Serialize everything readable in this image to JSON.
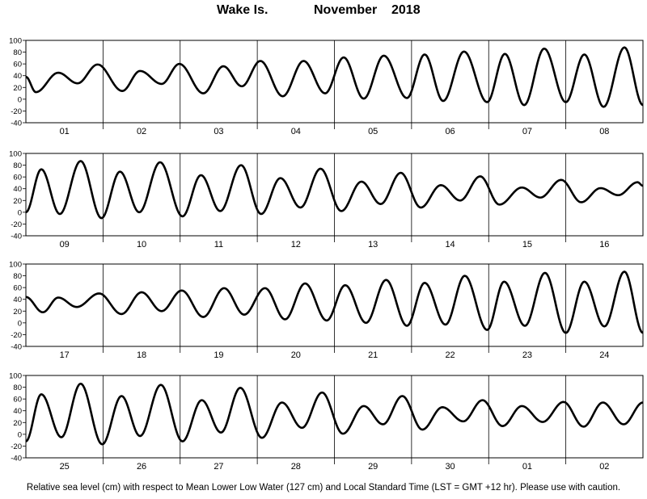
{
  "title": {
    "station": "Wake Is.",
    "month": "November",
    "year": "2018"
  },
  "footnote": "Relative sea level (cm) with respect to Mean Lower Low Water (127 cm) and Local Standard Time (LST = GMT +12 hr). Please use with caution.",
  "chart_data": {
    "type": "line",
    "ylim": [
      -40,
      100
    ],
    "yticks": [
      -40,
      -20,
      0,
      20,
      40,
      60,
      80,
      100
    ],
    "grid": "vertical lines at day boundaries",
    "series_color": "#000000",
    "panels": [
      {
        "days": [
          "01",
          "02",
          "03",
          "04",
          "05",
          "06",
          "07",
          "08"
        ],
        "extrema": [
          {
            "t": 0.0,
            "v": 38
          },
          {
            "t": 0.13,
            "v": 12
          },
          {
            "t": 0.42,
            "v": 45
          },
          {
            "t": 0.67,
            "v": 27
          },
          {
            "t": 0.93,
            "v": 59
          },
          {
            "t": 1.25,
            "v": 14
          },
          {
            "t": 1.48,
            "v": 48
          },
          {
            "t": 1.76,
            "v": 26
          },
          {
            "t": 1.99,
            "v": 60
          },
          {
            "t": 2.3,
            "v": 10
          },
          {
            "t": 2.56,
            "v": 56
          },
          {
            "t": 2.8,
            "v": 22
          },
          {
            "t": 3.04,
            "v": 65
          },
          {
            "t": 3.33,
            "v": 5
          },
          {
            "t": 3.6,
            "v": 65
          },
          {
            "t": 3.88,
            "v": 10
          },
          {
            "t": 4.12,
            "v": 71
          },
          {
            "t": 4.38,
            "v": 1
          },
          {
            "t": 4.64,
            "v": 74
          },
          {
            "t": 4.94,
            "v": 2
          },
          {
            "t": 5.17,
            "v": 76
          },
          {
            "t": 5.41,
            "v": -3
          },
          {
            "t": 5.68,
            "v": 81
          },
          {
            "t": 5.98,
            "v": -5
          },
          {
            "t": 6.21,
            "v": 77
          },
          {
            "t": 6.46,
            "v": -10
          },
          {
            "t": 6.72,
            "v": 86
          },
          {
            "t": 7.0,
            "v": -5
          },
          {
            "t": 7.24,
            "v": 76
          },
          {
            "t": 7.49,
            "v": -13
          },
          {
            "t": 7.76,
            "v": 88
          },
          {
            "t": 8.0,
            "v": -10
          }
        ]
      },
      {
        "days": [
          "09",
          "10",
          "11",
          "12",
          "13",
          "14",
          "15",
          "16"
        ],
        "extrema": [
          {
            "t": 0.0,
            "v": 0
          },
          {
            "t": 0.2,
            "v": 73
          },
          {
            "t": 0.44,
            "v": -3
          },
          {
            "t": 0.71,
            "v": 87
          },
          {
            "t": 0.98,
            "v": -10
          },
          {
            "t": 1.22,
            "v": 69
          },
          {
            "t": 1.47,
            "v": 0
          },
          {
            "t": 1.74,
            "v": 85
          },
          {
            "t": 2.03,
            "v": -7
          },
          {
            "t": 2.27,
            "v": 63
          },
          {
            "t": 2.52,
            "v": 2
          },
          {
            "t": 2.79,
            "v": 80
          },
          {
            "t": 3.05,
            "v": -3
          },
          {
            "t": 3.3,
            "v": 58
          },
          {
            "t": 3.56,
            "v": 8
          },
          {
            "t": 3.82,
            "v": 74
          },
          {
            "t": 4.09,
            "v": 2
          },
          {
            "t": 4.35,
            "v": 52
          },
          {
            "t": 4.6,
            "v": 14
          },
          {
            "t": 4.86,
            "v": 67
          },
          {
            "t": 5.12,
            "v": 8
          },
          {
            "t": 5.38,
            "v": 46
          },
          {
            "t": 5.63,
            "v": 20
          },
          {
            "t": 5.89,
            "v": 61
          },
          {
            "t": 6.14,
            "v": 13
          },
          {
            "t": 6.43,
            "v": 42
          },
          {
            "t": 6.67,
            "v": 25
          },
          {
            "t": 6.94,
            "v": 55
          },
          {
            "t": 7.2,
            "v": 17
          },
          {
            "t": 7.45,
            "v": 41
          },
          {
            "t": 7.68,
            "v": 29
          },
          {
            "t": 7.93,
            "v": 51
          },
          {
            "t": 8.0,
            "v": 45
          }
        ]
      },
      {
        "days": [
          "17",
          "18",
          "19",
          "20",
          "21",
          "22",
          "23",
          "24"
        ],
        "extrema": [
          {
            "t": 0.0,
            "v": 44
          },
          {
            "t": 0.22,
            "v": 18
          },
          {
            "t": 0.42,
            "v": 43
          },
          {
            "t": 0.66,
            "v": 27
          },
          {
            "t": 0.95,
            "v": 50
          },
          {
            "t": 1.24,
            "v": 15
          },
          {
            "t": 1.5,
            "v": 52
          },
          {
            "t": 1.76,
            "v": 20
          },
          {
            "t": 2.02,
            "v": 55
          },
          {
            "t": 2.3,
            "v": 10
          },
          {
            "t": 2.57,
            "v": 59
          },
          {
            "t": 2.83,
            "v": 14
          },
          {
            "t": 3.1,
            "v": 59
          },
          {
            "t": 3.36,
            "v": 6
          },
          {
            "t": 3.62,
            "v": 67
          },
          {
            "t": 3.9,
            "v": 4
          },
          {
            "t": 4.14,
            "v": 64
          },
          {
            "t": 4.41,
            "v": 0
          },
          {
            "t": 4.67,
            "v": 73
          },
          {
            "t": 4.94,
            "v": -5
          },
          {
            "t": 5.17,
            "v": 68
          },
          {
            "t": 5.44,
            "v": -3
          },
          {
            "t": 5.69,
            "v": 80
          },
          {
            "t": 5.98,
            "v": -12
          },
          {
            "t": 6.2,
            "v": 70
          },
          {
            "t": 6.47,
            "v": -5
          },
          {
            "t": 6.73,
            "v": 85
          },
          {
            "t": 7.0,
            "v": -17
          },
          {
            "t": 7.24,
            "v": 70
          },
          {
            "t": 7.5,
            "v": -6
          },
          {
            "t": 7.76,
            "v": 87
          },
          {
            "t": 8.0,
            "v": -17
          }
        ]
      },
      {
        "days": [
          "25",
          "26",
          "27",
          "28",
          "29",
          "30",
          "01",
          "02"
        ],
        "extrema": [
          {
            "t": 0.0,
            "v": -12
          },
          {
            "t": 0.2,
            "v": 68
          },
          {
            "t": 0.46,
            "v": -5
          },
          {
            "t": 0.71,
            "v": 86
          },
          {
            "t": 0.99,
            "v": -17
          },
          {
            "t": 1.24,
            "v": 65
          },
          {
            "t": 1.48,
            "v": -3
          },
          {
            "t": 1.75,
            "v": 84
          },
          {
            "t": 2.03,
            "v": -12
          },
          {
            "t": 2.28,
            "v": 58
          },
          {
            "t": 2.53,
            "v": 3
          },
          {
            "t": 2.78,
            "v": 79
          },
          {
            "t": 3.06,
            "v": -6
          },
          {
            "t": 3.32,
            "v": 54
          },
          {
            "t": 3.58,
            "v": 11
          },
          {
            "t": 3.84,
            "v": 71
          },
          {
            "t": 4.11,
            "v": 1
          },
          {
            "t": 4.38,
            "v": 48
          },
          {
            "t": 4.63,
            "v": 17
          },
          {
            "t": 4.88,
            "v": 65
          },
          {
            "t": 5.14,
            "v": 8
          },
          {
            "t": 5.4,
            "v": 46
          },
          {
            "t": 5.67,
            "v": 22
          },
          {
            "t": 5.92,
            "v": 58
          },
          {
            "t": 6.18,
            "v": 14
          },
          {
            "t": 6.43,
            "v": 48
          },
          {
            "t": 6.7,
            "v": 21
          },
          {
            "t": 6.97,
            "v": 55
          },
          {
            "t": 7.23,
            "v": 13
          },
          {
            "t": 7.48,
            "v": 54
          },
          {
            "t": 7.75,
            "v": 17
          },
          {
            "t": 8.0,
            "v": 54
          }
        ]
      }
    ]
  }
}
